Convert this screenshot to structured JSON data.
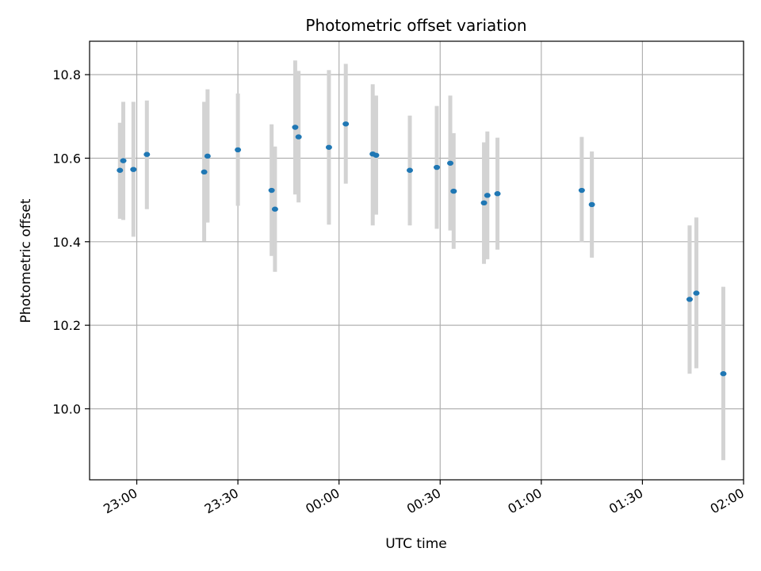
{
  "chart_data": {
    "type": "scatter",
    "title": "Photometric offset variation",
    "xlabel": "UTC time",
    "ylabel": "Photometric offset",
    "x_unit": "UTC time (HH:MM)",
    "xlim": [
      "22:46",
      "02:00"
    ],
    "ylim": [
      9.83,
      10.88
    ],
    "x_ticks": [
      "23:00",
      "23:30",
      "00:00",
      "00:30",
      "01:00",
      "01:30",
      "02:00"
    ],
    "y_ticks": [
      "10.0",
      "10.2",
      "10.4",
      "10.6",
      "10.8"
    ],
    "grid": true,
    "colors": {
      "point": "#1f77b4",
      "errorbar": "#d3d3d3",
      "grid": "#b0b0b0"
    },
    "series": [
      {
        "points": [
          {
            "x": "22:55",
            "y": 10.571,
            "err_low": 10.455,
            "err_high": 10.685
          },
          {
            "x": "22:56",
            "y": 10.594,
            "err_low": 10.452,
            "err_high": 10.735
          },
          {
            "x": "22:59",
            "y": 10.573,
            "err_low": 10.412,
            "err_high": 10.735
          },
          {
            "x": "23:03",
            "y": 10.609,
            "err_low": 10.478,
            "err_high": 10.738
          },
          {
            "x": "23:20",
            "y": 10.567,
            "err_low": 10.401,
            "err_high": 10.735
          },
          {
            "x": "23:21",
            "y": 10.605,
            "err_low": 10.446,
            "err_high": 10.765
          },
          {
            "x": "23:30",
            "y": 10.62,
            "err_low": 10.486,
            "err_high": 10.755
          },
          {
            "x": "23:40",
            "y": 10.523,
            "err_low": 10.366,
            "err_high": 10.681
          },
          {
            "x": "23:41",
            "y": 10.478,
            "err_low": 10.328,
            "err_high": 10.628
          },
          {
            "x": "23:47",
            "y": 10.674,
            "err_low": 10.513,
            "err_high": 10.834
          },
          {
            "x": "23:48",
            "y": 10.651,
            "err_low": 10.494,
            "err_high": 10.809
          },
          {
            "x": "23:57",
            "y": 10.626,
            "err_low": 10.441,
            "err_high": 10.811
          },
          {
            "x": "00:02",
            "y": 10.682,
            "err_low": 10.539,
            "err_high": 10.826
          },
          {
            "x": "00:10",
            "y": 10.61,
            "err_low": 10.439,
            "err_high": 10.777
          },
          {
            "x": "00:11",
            "y": 10.607,
            "err_low": 10.465,
            "err_high": 10.75
          },
          {
            "x": "00:21",
            "y": 10.571,
            "err_low": 10.439,
            "err_high": 10.702
          },
          {
            "x": "00:29",
            "y": 10.578,
            "err_low": 10.431,
            "err_high": 10.725
          },
          {
            "x": "00:33",
            "y": 10.588,
            "err_low": 10.427,
            "err_high": 10.75
          },
          {
            "x": "00:34",
            "y": 10.521,
            "err_low": 10.383,
            "err_high": 10.66
          },
          {
            "x": "00:43",
            "y": 10.493,
            "err_low": 10.347,
            "err_high": 10.638
          },
          {
            "x": "00:44",
            "y": 10.511,
            "err_low": 10.358,
            "err_high": 10.664
          },
          {
            "x": "00:47",
            "y": 10.515,
            "err_low": 10.381,
            "err_high": 10.649
          },
          {
            "x": "01:12",
            "y": 10.523,
            "err_low": 10.399,
            "err_high": 10.651
          },
          {
            "x": "01:15",
            "y": 10.489,
            "err_low": 10.362,
            "err_high": 10.616
          },
          {
            "x": "01:44",
            "y": 10.262,
            "err_low": 10.084,
            "err_high": 10.439
          },
          {
            "x": "01:46",
            "y": 10.277,
            "err_low": 10.097,
            "err_high": 10.458
          },
          {
            "x": "01:54",
            "y": 10.084,
            "err_low": 9.877,
            "err_high": 10.292
          }
        ]
      }
    ]
  }
}
